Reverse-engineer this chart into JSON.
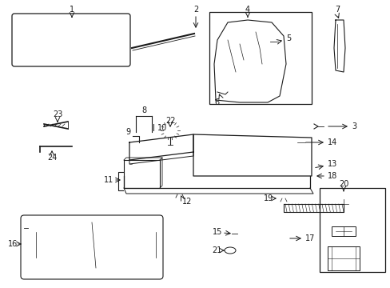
{
  "background_color": "#ffffff",
  "gray": "#1a1a1a",
  "light_gray": "#bbbbbb",
  "fig_w": 4.89,
  "fig_h": 3.6,
  "dpi": 100
}
